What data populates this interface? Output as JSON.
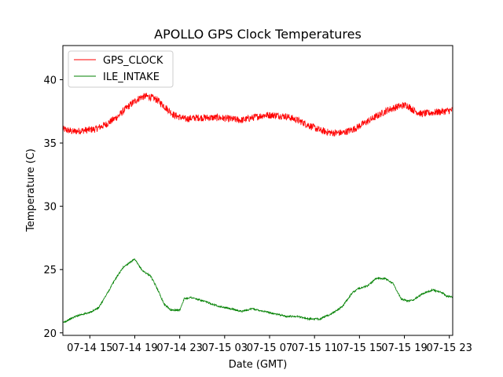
{
  "chart_data": {
    "type": "line",
    "title": "APOLLO GPS Clock Temperatures",
    "xlabel": "Date (GMT)",
    "ylabel": "Temperature (C)",
    "x_unit": "hours",
    "x_tick_labels": [
      "07-14 15",
      "07-14 19",
      "07-14 23",
      "07-15 03",
      "07-15 07",
      "07-15 11",
      "07-15 15",
      "07-15 19",
      "07-15 23"
    ],
    "x_tick_hours": [
      15,
      19,
      23,
      27,
      31,
      35,
      39,
      43,
      47
    ],
    "xlim": [
      12.6,
      47.3
    ],
    "ylim": [
      19.8,
      42.7
    ],
    "yticks": [
      20,
      25,
      30,
      35,
      40
    ],
    "grid": false,
    "legend_position": "top-left",
    "series": [
      {
        "name": "GPS_CLOCK",
        "color": "#ff0000",
        "noise": 0.28,
        "x": [
          12.6,
          13.5,
          14.5,
          15.5,
          16.5,
          17.5,
          18.3,
          19.0,
          19.5,
          20.0,
          20.5,
          21.0,
          21.5,
          22.0,
          22.5,
          23.5,
          24.5,
          25.5,
          26.5,
          27.5,
          28.5,
          29.5,
          30.5,
          31.5,
          32.5,
          33.5,
          34.5,
          35.5,
          36.5,
          37.5,
          38.5,
          39.5,
          40.5,
          41.5,
          42.5,
          43.2,
          43.8,
          44.5,
          45.5,
          46.5,
          47.3
        ],
        "y": [
          36.1,
          35.9,
          36.0,
          36.1,
          36.5,
          37.1,
          37.8,
          38.3,
          38.6,
          38.7,
          38.6,
          38.4,
          38.0,
          37.6,
          37.2,
          36.9,
          37.0,
          37.0,
          37.0,
          36.9,
          36.8,
          37.0,
          37.2,
          37.2,
          37.1,
          36.8,
          36.4,
          36.0,
          35.8,
          35.8,
          36.1,
          36.6,
          37.1,
          37.6,
          37.9,
          38.0,
          37.6,
          37.3,
          37.4,
          37.5,
          37.6
        ]
      },
      {
        "name": "ILE_INTAKE",
        "color": "#008000",
        "noise": 0.07,
        "x": [
          12.6,
          13.5,
          14.0,
          15.0,
          15.8,
          16.6,
          17.3,
          18.0,
          18.6,
          19.0,
          19.3,
          19.7,
          20.4,
          21.0,
          21.6,
          22.2,
          23.0,
          23.4,
          24.0,
          25.5,
          26.5,
          27.5,
          28.5,
          29.5,
          30.5,
          31.5,
          32.5,
          33.5,
          34.5,
          35.5,
          36.5,
          37.5,
          38.3,
          38.9,
          39.7,
          40.5,
          41.3,
          42.0,
          42.7,
          43.3,
          43.8,
          44.6,
          45.5,
          46.3,
          46.8,
          47.3
        ],
        "y": [
          20.8,
          21.2,
          21.4,
          21.6,
          22.0,
          23.2,
          24.3,
          25.2,
          25.6,
          25.8,
          25.4,
          24.9,
          24.5,
          23.5,
          22.3,
          21.8,
          21.8,
          22.7,
          22.8,
          22.4,
          22.1,
          21.9,
          21.7,
          21.9,
          21.7,
          21.5,
          21.3,
          21.3,
          21.1,
          21.1,
          21.5,
          22.1,
          23.1,
          23.5,
          23.7,
          24.3,
          24.3,
          23.9,
          22.7,
          22.5,
          22.6,
          23.1,
          23.4,
          23.2,
          22.9,
          22.8
        ]
      }
    ]
  }
}
